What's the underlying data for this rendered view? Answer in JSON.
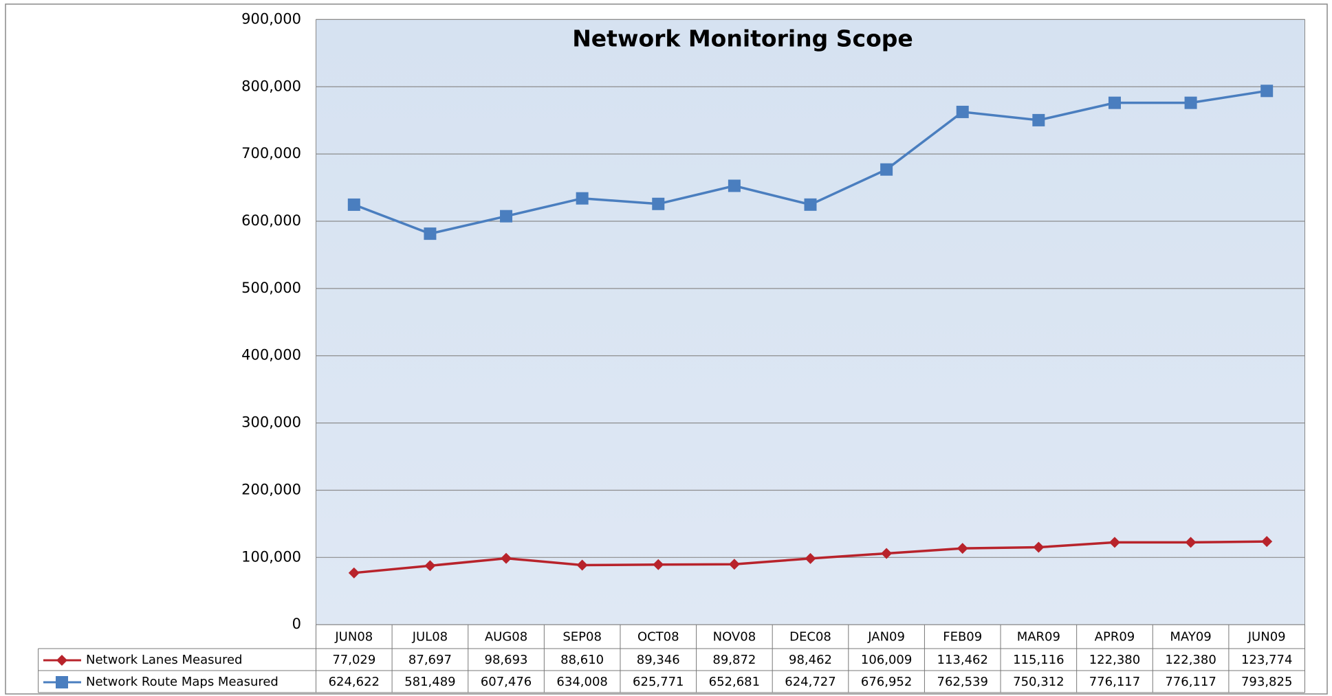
{
  "chart_data": {
    "type": "line",
    "title": "Network Monitoring Scope",
    "categories": [
      "JUN08",
      "JUL08",
      "AUG08",
      "SEP08",
      "OCT08",
      "NOV08",
      "DEC08",
      "JAN09",
      "FEB09",
      "MAR09",
      "APR09",
      "MAY09",
      "JUN09"
    ],
    "series": [
      {
        "name": "Network Lanes Measured",
        "color": "#b8232b",
        "marker": "diamond",
        "values": [
          77029,
          87697,
          98693,
          88610,
          89346,
          89872,
          98462,
          106009,
          113462,
          115116,
          122380,
          122380,
          123774
        ],
        "value_labels": [
          "77,029",
          "87,697",
          "98,693",
          "88,610",
          "89,346",
          "89,872",
          "98,462",
          "106,009",
          "113,462",
          "115,116",
          "122,380",
          "122,380",
          "123,774"
        ]
      },
      {
        "name": "Network Route Maps Measured",
        "color": "#4a7ebf",
        "marker": "square",
        "values": [
          624622,
          581489,
          607476,
          634008,
          625771,
          652681,
          624727,
          676952,
          762539,
          750312,
          776117,
          776117,
          793825
        ],
        "value_labels": [
          "624,622",
          "581,489",
          "607,476",
          "634,008",
          "625,771",
          "652,681",
          "624,727",
          "676,952",
          "762,539",
          "750,312",
          "776,117",
          "776,117",
          "793,825"
        ]
      }
    ],
    "ylim": [
      0,
      900000
    ],
    "yticks": [
      {
        "value": 0,
        "label": "0"
      },
      {
        "value": 100000,
        "label": "100,000"
      },
      {
        "value": 200000,
        "label": "200,000"
      },
      {
        "value": 300000,
        "label": "300,000"
      },
      {
        "value": 400000,
        "label": "400,000"
      },
      {
        "value": 500000,
        "label": "500,000"
      },
      {
        "value": 600000,
        "label": "600,000"
      },
      {
        "value": 700000,
        "label": "700,000"
      },
      {
        "value": 800000,
        "label": "800,000"
      },
      {
        "value": 900000,
        "label": "900,000"
      }
    ],
    "grid": true
  }
}
